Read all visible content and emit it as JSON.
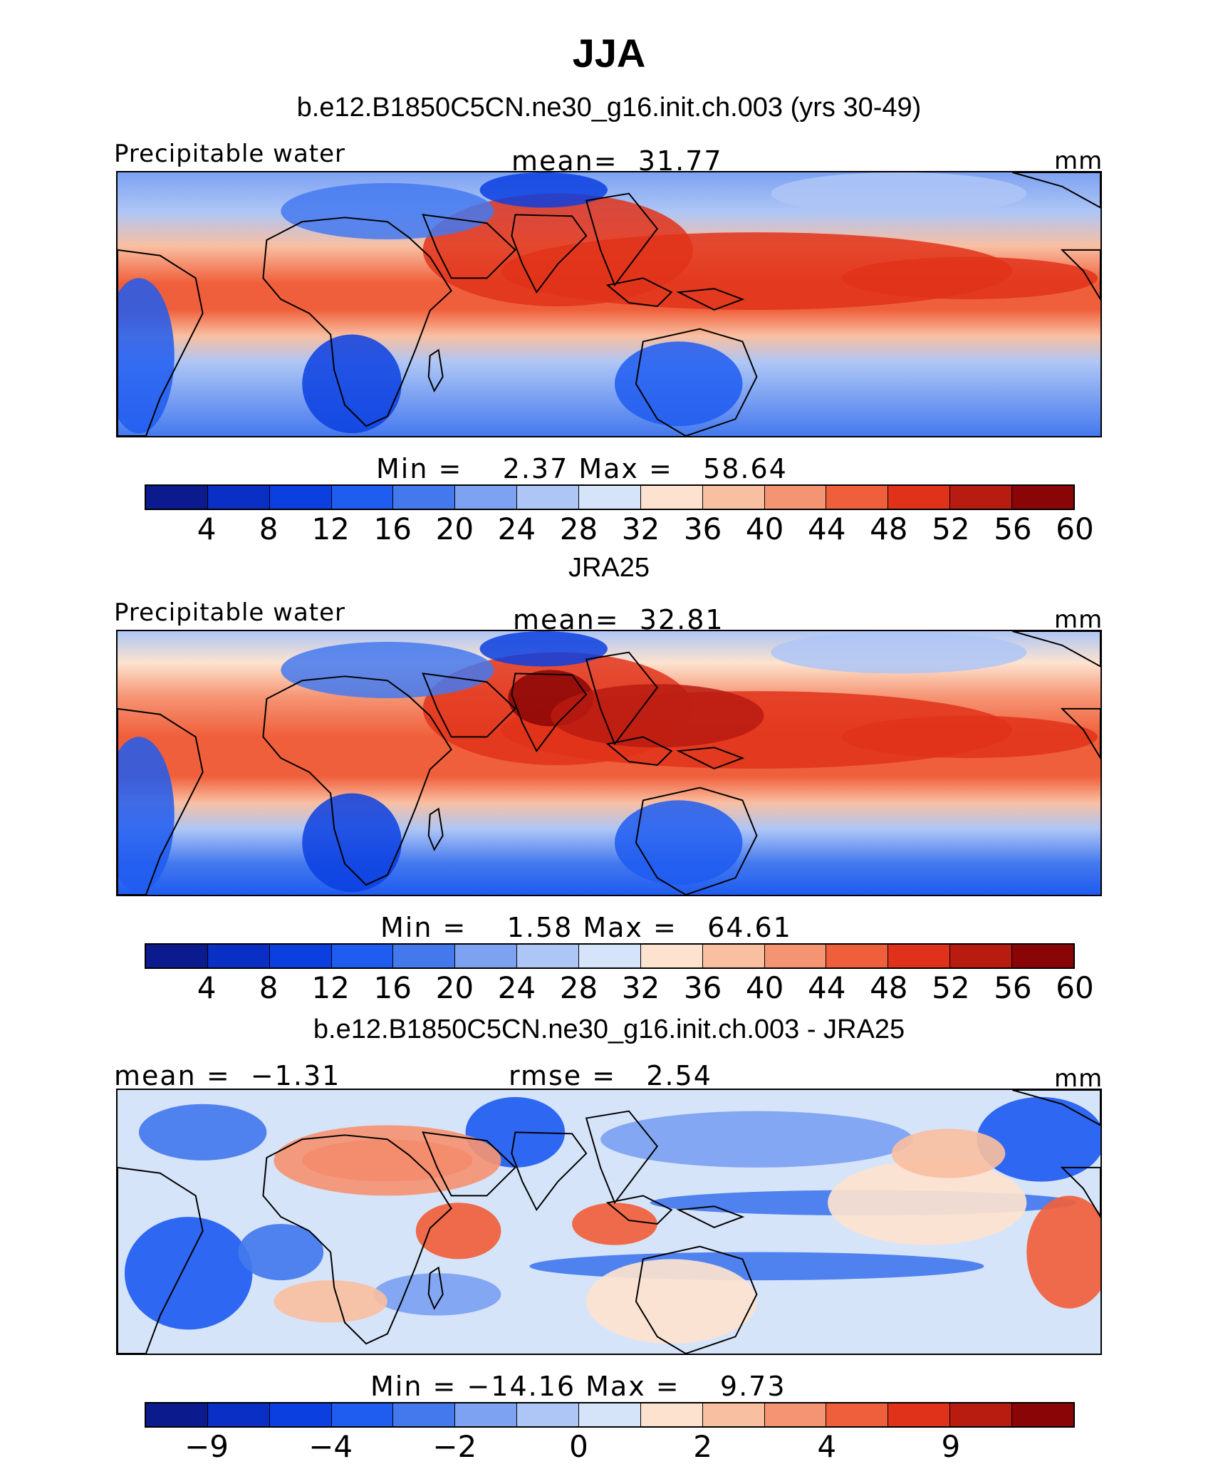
{
  "title": "JJA",
  "panels": [
    {
      "subtitle": "b.e12.B1850C5CN.ne30_g16.init.ch.003 (yrs 30-49)",
      "left_label": "Precipitable water",
      "center_label": "mean=  31.77",
      "units": "mm",
      "minmax": "Min =    2.37 Max =   58.64",
      "colorbar_ticks": [
        "4",
        "8",
        "12",
        "16",
        "20",
        "24",
        "28",
        "32",
        "36",
        "40",
        "44",
        "48",
        "52",
        "56",
        "60"
      ],
      "map_kind": "model"
    },
    {
      "subtitle": "JRA25",
      "left_label": "Precipitable water",
      "center_label": "mean=  32.81",
      "units": "mm",
      "minmax": "Min =    1.58 Max =   64.61",
      "colorbar_ticks": [
        "4",
        "8",
        "12",
        "16",
        "20",
        "24",
        "28",
        "32",
        "36",
        "40",
        "44",
        "48",
        "52",
        "56",
        "60"
      ],
      "map_kind": "obs"
    },
    {
      "subtitle": "b.e12.B1850C5CN.ne30_g16.init.ch.003 - JRA25",
      "left_label": "mean =  −1.31",
      "center_label": "rmse =   2.54",
      "units": "mm",
      "minmax": "Min = −14.16 Max =    9.73",
      "colorbar_ticks": [
        "−9",
        "",
        "−4",
        "",
        "−2",
        "",
        "0",
        "",
        "2",
        "",
        "4",
        "",
        "9",
        "",
        ""
      ],
      "map_kind": "diff"
    }
  ],
  "colorbar_colors": [
    "#0b1a8c",
    "#0a2fc4",
    "#0b3fe0",
    "#1f5cf0",
    "#4479ee",
    "#7da2f2",
    "#aec6f6",
    "#d6e4f9",
    "#fde3cf",
    "#f9bfa1",
    "#f59473",
    "#f05f3b",
    "#e0321a",
    "#b81b10",
    "#8a0505"
  ]
}
